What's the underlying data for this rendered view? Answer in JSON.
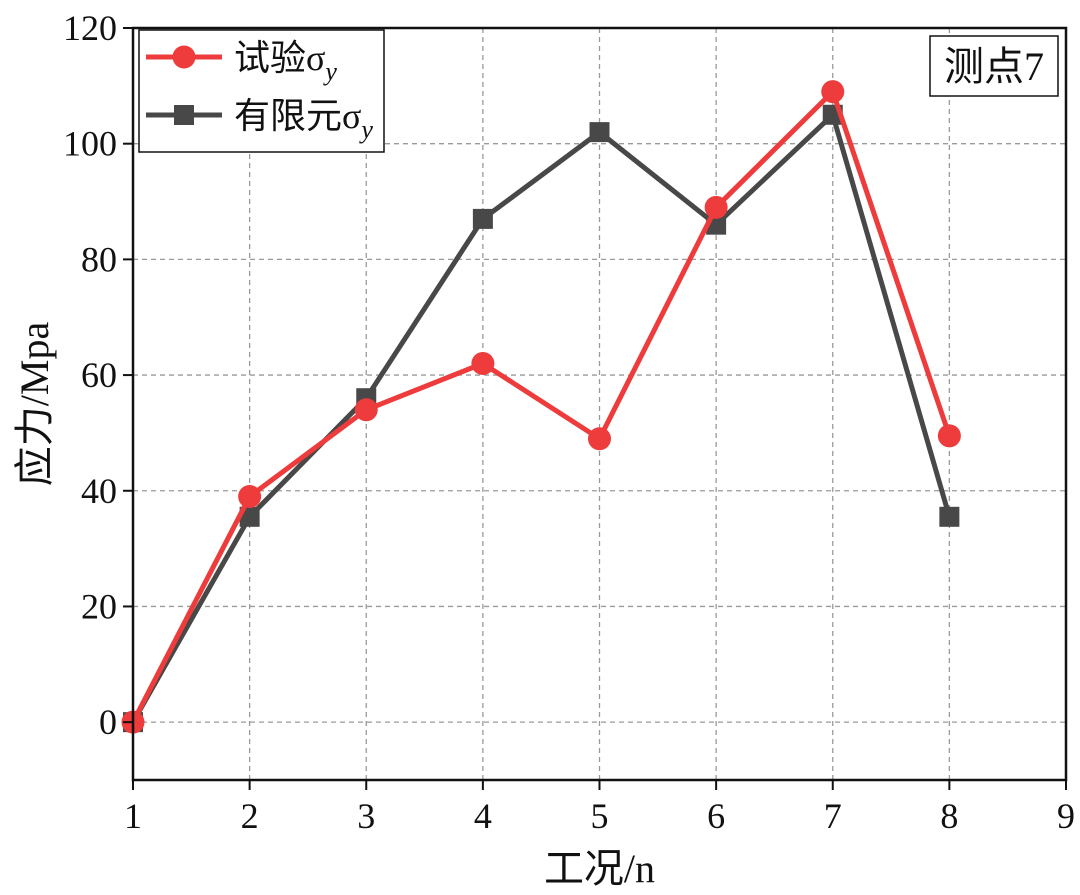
{
  "chart_data": {
    "type": "line",
    "xlabel": "工况/n",
    "ylabel": "应力/Mpa",
    "xlim": [
      1,
      9
    ],
    "ylim": [
      -10,
      120
    ],
    "xticks": [
      1,
      2,
      3,
      4,
      5,
      6,
      7,
      8,
      9
    ],
    "yticks": [
      0,
      20,
      40,
      60,
      80,
      100,
      120
    ],
    "grid": true,
    "legend_position": "top-left",
    "annotation": "测点7",
    "series": [
      {
        "name": "试验σy",
        "name_main": "试验σ",
        "name_sub": "y",
        "color": "#ee3b3b",
        "marker": "circle",
        "x": [
          1,
          2,
          3,
          4,
          5,
          6,
          7,
          8
        ],
        "y": [
          0,
          39,
          54,
          62,
          49,
          89,
          109,
          49.5
        ]
      },
      {
        "name": "有限元σy",
        "name_main": "有限元σ",
        "name_sub": "y",
        "color": "#484848",
        "marker": "square",
        "x": [
          1,
          2,
          3,
          4,
          5,
          6,
          7,
          8
        ],
        "y": [
          0,
          35.5,
          56,
          87,
          102,
          86,
          105,
          35.5
        ]
      }
    ]
  }
}
